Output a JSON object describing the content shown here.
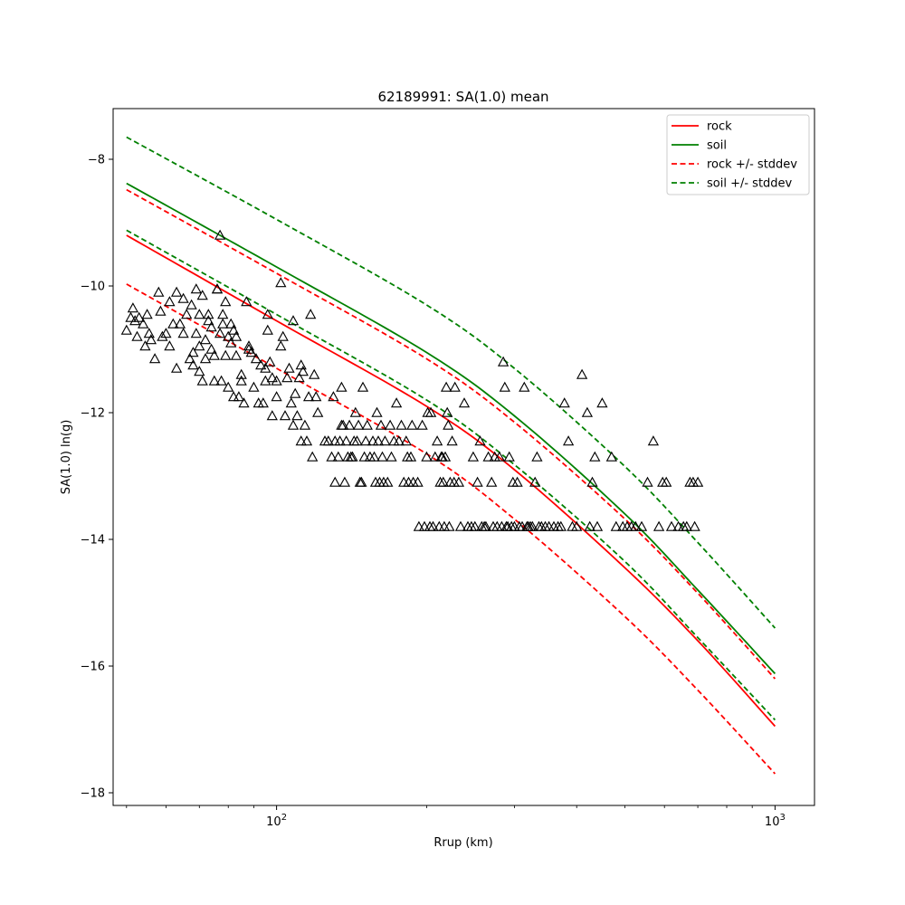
{
  "chart_data": {
    "type": "scatter",
    "title": "62189991: SA(1.0) mean",
    "xlabel": "Rrup (km)",
    "ylabel": "SA(1.0) ln(g)",
    "xscale": "log",
    "xlim": [
      47,
      1200
    ],
    "ylim": [
      -18.2,
      -7.2
    ],
    "xticks": [
      {
        "value": 100,
        "base": "10",
        "exp": "2"
      },
      {
        "value": 1000,
        "base": "10",
        "exp": "3"
      }
    ],
    "yticks": [
      -8,
      -10,
      -12,
      -14,
      -16,
      -18
    ],
    "grid": false,
    "legend_position": "top-right",
    "legend": [
      {
        "label": "rock",
        "color": "#ff0000",
        "dash": "solid"
      },
      {
        "label": "soil",
        "color": "#008000",
        "dash": "solid"
      },
      {
        "label": "rock +/- stddev",
        "color": "#ff0000",
        "dash": "dashed"
      },
      {
        "label": "soil +/- stddev",
        "color": "#008000",
        "dash": "dashed"
      }
    ],
    "lines": [
      {
        "name": "rock",
        "color": "#ff0000",
        "dash": "solid",
        "x": [
          50,
          100,
          200,
          300,
          500,
          700,
          1000
        ],
        "y": [
          -9.2,
          -10.55,
          -11.9,
          -12.9,
          -14.45,
          -15.6,
          -16.95
        ]
      },
      {
        "name": "soil",
        "color": "#008000",
        "dash": "solid",
        "x": [
          50,
          100,
          200,
          300,
          500,
          700,
          1000
        ],
        "y": [
          -8.38,
          -9.7,
          -11.05,
          -12.05,
          -13.6,
          -14.8,
          -16.12
        ]
      },
      {
        "name": "rock +/- stddev",
        "color": "#ff0000",
        "dash": "dashed",
        "x": [
          50,
          100,
          200,
          300,
          500,
          700,
          1000
        ],
        "y": [
          -8.48,
          -9.8,
          -11.15,
          -12.15,
          -13.68,
          -14.85,
          -16.2
        ]
      },
      {
        "name": "rock +/- stddev",
        "color": "#ff0000",
        "dash": "dashed",
        "x": [
          50,
          100,
          200,
          300,
          500,
          700,
          1000
        ],
        "y": [
          -9.97,
          -11.3,
          -12.65,
          -13.68,
          -15.22,
          -16.38,
          -17.7
        ]
      },
      {
        "name": "soil +/- stddev",
        "color": "#008000",
        "dash": "dashed",
        "x": [
          50,
          100,
          200,
          300,
          500,
          700,
          1000
        ],
        "y": [
          -7.65,
          -8.95,
          -10.3,
          -11.3,
          -12.85,
          -14.05,
          -15.4
        ]
      },
      {
        "name": "soil +/- stddev",
        "color": "#008000",
        "dash": "dashed",
        "x": [
          50,
          100,
          200,
          300,
          500,
          700,
          1000
        ],
        "y": [
          -9.12,
          -10.45,
          -11.8,
          -12.82,
          -14.35,
          -15.55,
          -16.85
        ]
      }
    ],
    "scatter": {
      "marker": "triangle",
      "color": "#000000",
      "points": [
        [
          50,
          -10.7
        ],
        [
          51,
          -10.5
        ],
        [
          51.5,
          -10.35
        ],
        [
          52,
          -10.55
        ],
        [
          52.5,
          -10.8
        ],
        [
          53,
          -10.5
        ],
        [
          54,
          -10.6
        ],
        [
          54.5,
          -10.95
        ],
        [
          55,
          -10.45
        ],
        [
          55.5,
          -10.75
        ],
        [
          56,
          -10.85
        ],
        [
          57,
          -11.15
        ],
        [
          58,
          -10.1
        ],
        [
          58.5,
          -10.4
        ],
        [
          59,
          -10.8
        ],
        [
          60,
          -10.75
        ],
        [
          61,
          -10.95
        ],
        [
          61,
          -10.25
        ],
        [
          62,
          -10.6
        ],
        [
          63,
          -10.1
        ],
        [
          63,
          -11.3
        ],
        [
          64,
          -10.6
        ],
        [
          65,
          -10.2
        ],
        [
          65,
          -10.75
        ],
        [
          66,
          -10.45
        ],
        [
          67,
          -11.15
        ],
        [
          67.5,
          -10.3
        ],
        [
          68,
          -11.05
        ],
        [
          68,
          -11.25
        ],
        [
          69,
          -10.05
        ],
        [
          69,
          -10.75
        ],
        [
          70,
          -10.45
        ],
        [
          70,
          -10.95
        ],
        [
          70,
          -11.35
        ],
        [
          71,
          -11.5
        ],
        [
          71,
          -10.15
        ],
        [
          72,
          -10.85
        ],
        [
          72,
          -11.15
        ],
        [
          73,
          -10.45
        ],
        [
          73,
          -10.55
        ],
        [
          74,
          -10.65
        ],
        [
          74,
          -11.0
        ],
        [
          75,
          -11.5
        ],
        [
          75,
          -11.1
        ],
        [
          76,
          -10.05
        ],
        [
          76,
          -10.05
        ],
        [
          77,
          -9.2
        ],
        [
          77,
          -10.75
        ],
        [
          77.5,
          -11.5
        ],
        [
          78,
          -10.6
        ],
        [
          78,
          -10.45
        ],
        [
          79,
          -11.1
        ],
        [
          79,
          -10.25
        ],
        [
          80,
          -11.6
        ],
        [
          80,
          -10.8
        ],
        [
          81,
          -10.6
        ],
        [
          81,
          -10.9
        ],
        [
          82,
          -10.7
        ],
        [
          82,
          -11.75
        ],
        [
          83,
          -10.8
        ],
        [
          83,
          -11.1
        ],
        [
          84,
          -11.75
        ],
        [
          85,
          -11.5
        ],
        [
          85,
          -11.4
        ],
        [
          86,
          -11.85
        ],
        [
          87,
          -10.25
        ],
        [
          88,
          -10.95
        ],
        [
          88,
          -11.0
        ],
        [
          89,
          -11.05
        ],
        [
          90,
          -11.6
        ],
        [
          91,
          -11.15
        ],
        [
          92,
          -11.85
        ],
        [
          93,
          -11.25
        ],
        [
          94,
          -11.85
        ],
        [
          95,
          -11.5
        ],
        [
          95,
          -11.3
        ],
        [
          96,
          -10.45
        ],
        [
          96,
          -10.7
        ],
        [
          97,
          -11.2
        ],
        [
          98,
          -11.45
        ],
        [
          98,
          -12.05
        ],
        [
          100,
          -11.75
        ],
        [
          100,
          -11.5
        ],
        [
          102,
          -9.95
        ],
        [
          102,
          -10.95
        ],
        [
          103,
          -10.8
        ],
        [
          104,
          -12.05
        ],
        [
          105,
          -11.45
        ],
        [
          106,
          -11.3
        ],
        [
          107,
          -11.85
        ],
        [
          108,
          -10.55
        ],
        [
          108,
          -12.2
        ],
        [
          109,
          -11.7
        ],
        [
          110,
          -12.05
        ],
        [
          111,
          -11.45
        ],
        [
          112,
          -11.25
        ],
        [
          112,
          -12.45
        ],
        [
          113,
          -11.35
        ],
        [
          114,
          -12.2
        ],
        [
          115,
          -12.45
        ],
        [
          116,
          -11.75
        ],
        [
          117,
          -10.45
        ],
        [
          118,
          -12.7
        ],
        [
          119,
          -11.4
        ],
        [
          120,
          -11.75
        ],
        [
          121,
          -12.0
        ],
        [
          125,
          -12.45
        ],
        [
          127,
          -12.45
        ],
        [
          129,
          -12.7
        ],
        [
          130,
          -11.75
        ],
        [
          131,
          -12.45
        ],
        [
          131,
          -13.1
        ],
        [
          133,
          -12.7
        ],
        [
          134,
          -12.45
        ],
        [
          135,
          -11.6
        ],
        [
          135,
          -12.2
        ],
        [
          136,
          -12.2
        ],
        [
          137,
          -13.1
        ],
        [
          138,
          -12.45
        ],
        [
          139,
          -12.7
        ],
        [
          140,
          -12.2
        ],
        [
          141,
          -12.7
        ],
        [
          142,
          -12.7
        ],
        [
          143,
          -12.45
        ],
        [
          144,
          -12.0
        ],
        [
          145,
          -12.45
        ],
        [
          146,
          -12.2
        ],
        [
          147,
          -13.1
        ],
        [
          148,
          -13.1
        ],
        [
          149,
          -11.6
        ],
        [
          150,
          -12.7
        ],
        [
          151,
          -12.45
        ],
        [
          152,
          -12.2
        ],
        [
          154,
          -12.7
        ],
        [
          156,
          -12.45
        ],
        [
          157,
          -12.7
        ],
        [
          158,
          -13.1
        ],
        [
          159,
          -12.0
        ],
        [
          160,
          -12.45
        ],
        [
          161,
          -13.1
        ],
        [
          162,
          -12.2
        ],
        [
          163,
          -12.7
        ],
        [
          164,
          -13.1
        ],
        [
          165,
          -12.45
        ],
        [
          167,
          -13.1
        ],
        [
          169,
          -12.2
        ],
        [
          170,
          -12.7
        ],
        [
          172,
          -12.45
        ],
        [
          174,
          -11.85
        ],
        [
          176,
          -12.45
        ],
        [
          178,
          -12.2
        ],
        [
          180,
          -13.1
        ],
        [
          182,
          -12.45
        ],
        [
          183,
          -12.7
        ],
        [
          184,
          -13.1
        ],
        [
          186,
          -12.7
        ],
        [
          187,
          -12.2
        ],
        [
          188,
          -13.1
        ],
        [
          192,
          -13.1
        ],
        [
          193,
          -13.8
        ],
        [
          196,
          -12.2
        ],
        [
          198,
          -13.8
        ],
        [
          200,
          -12.7
        ],
        [
          201,
          -12.0
        ],
        [
          203,
          -13.8
        ],
        [
          204,
          -12.0
        ],
        [
          206,
          -13.8
        ],
        [
          208,
          -12.7
        ],
        [
          210,
          -12.45
        ],
        [
          212,
          -13.8
        ],
        [
          213,
          -13.1
        ],
        [
          214,
          -12.7
        ],
        [
          215,
          -12.7
        ],
        [
          216,
          -13.1
        ],
        [
          217,
          -13.8
        ],
        [
          218,
          -12.7
        ],
        [
          219,
          -11.6
        ],
        [
          220,
          -12.0
        ],
        [
          221,
          -12.2
        ],
        [
          222,
          -13.8
        ],
        [
          223,
          -13.1
        ],
        [
          225,
          -12.45
        ],
        [
          227,
          -13.1
        ],
        [
          228,
          -11.6
        ],
        [
          232,
          -13.1
        ],
        [
          234,
          -13.8
        ],
        [
          238,
          -11.85
        ],
        [
          242,
          -13.8
        ],
        [
          246,
          -13.8
        ],
        [
          248,
          -12.7
        ],
        [
          250,
          -13.8
        ],
        [
          253,
          -13.1
        ],
        [
          256,
          -12.45
        ],
        [
          258,
          -13.8
        ],
        [
          261,
          -13.8
        ],
        [
          263,
          -13.8
        ],
        [
          266,
          -12.7
        ],
        [
          270,
          -13.1
        ],
        [
          272,
          -13.8
        ],
        [
          274,
          -12.7
        ],
        [
          277,
          -13.8
        ],
        [
          280,
          -12.7
        ],
        [
          283,
          -13.8
        ],
        [
          285,
          -11.2
        ],
        [
          287,
          -11.6
        ],
        [
          289,
          -13.8
        ],
        [
          291,
          -13.8
        ],
        [
          293,
          -12.7
        ],
        [
          296,
          -13.8
        ],
        [
          298,
          -13.1
        ],
        [
          300,
          -13.8
        ],
        [
          304,
          -13.1
        ],
        [
          307,
          -13.8
        ],
        [
          311,
          -13.8
        ],
        [
          314,
          -11.6
        ],
        [
          318,
          -13.8
        ],
        [
          320,
          -13.8
        ],
        [
          323,
          -13.8
        ],
        [
          326,
          -13.8
        ],
        [
          330,
          -13.1
        ],
        [
          333,
          -12.7
        ],
        [
          336,
          -13.8
        ],
        [
          340,
          -13.8
        ],
        [
          346,
          -13.8
        ],
        [
          352,
          -13.8
        ],
        [
          360,
          -13.8
        ],
        [
          367,
          -13.8
        ],
        [
          372,
          -13.8
        ],
        [
          378,
          -11.85
        ],
        [
          385,
          -12.45
        ],
        [
          392,
          -13.8
        ],
        [
          400,
          -13.8
        ],
        [
          410,
          -11.4
        ],
        [
          420,
          -12.0
        ],
        [
          425,
          -13.8
        ],
        [
          430,
          -13.1
        ],
        [
          435,
          -12.7
        ],
        [
          440,
          -13.8
        ],
        [
          450,
          -11.85
        ],
        [
          470,
          -12.7
        ],
        [
          480,
          -13.8
        ],
        [
          495,
          -13.8
        ],
        [
          505,
          -13.8
        ],
        [
          515,
          -13.8
        ],
        [
          525,
          -13.8
        ],
        [
          540,
          -13.8
        ],
        [
          555,
          -13.1
        ],
        [
          570,
          -12.45
        ],
        [
          585,
          -13.8
        ],
        [
          595,
          -13.1
        ],
        [
          605,
          -13.1
        ],
        [
          620,
          -13.8
        ],
        [
          640,
          -13.8
        ],
        [
          655,
          -13.8
        ],
        [
          665,
          -13.8
        ],
        [
          675,
          -13.1
        ],
        [
          685,
          -13.1
        ],
        [
          690,
          -13.8
        ],
        [
          700,
          -13.1
        ]
      ]
    }
  }
}
